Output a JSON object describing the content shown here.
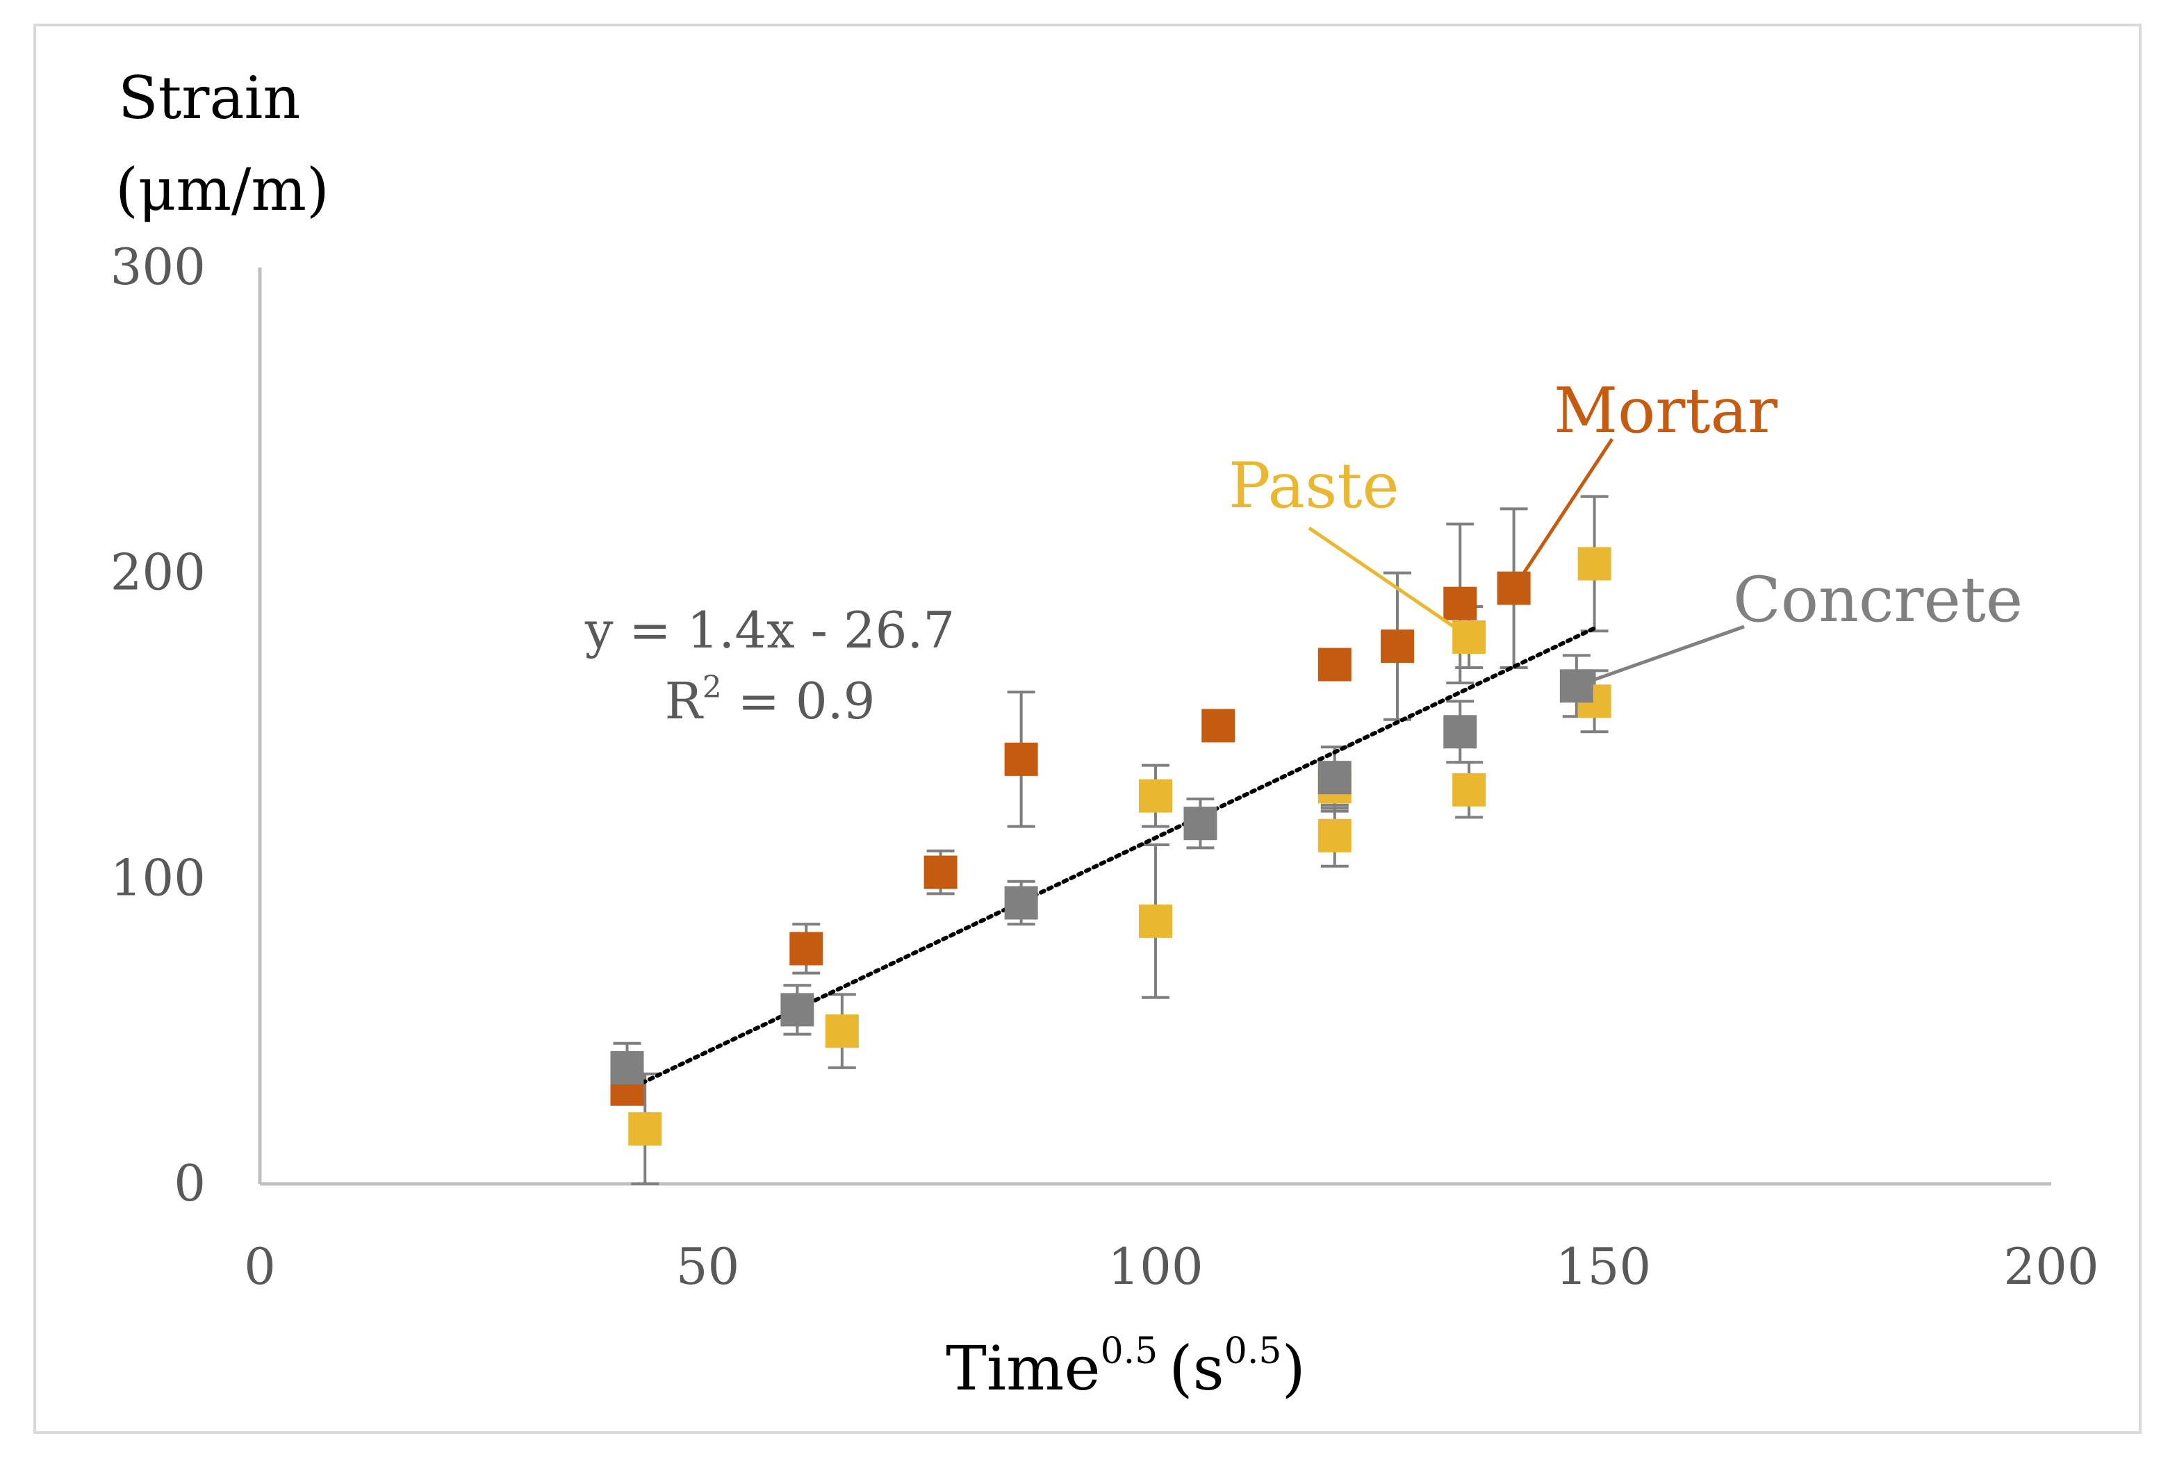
{
  "chart_data": {
    "type": "scatter",
    "title": "",
    "ylabel_line1": "Strain",
    "ylabel_line2": "(μm/m)",
    "xlabel_main": "Time",
    "xlabel_exp": "0.5",
    "xlabel_paren_open": "(s",
    "xlabel_paren_exp": "0.5",
    "xlabel_paren_close": ")",
    "xlim": [
      0,
      200
    ],
    "ylim": [
      0,
      300
    ],
    "xticks": [
      0,
      50,
      100,
      150,
      200
    ],
    "yticks": [
      0,
      100,
      200,
      300
    ],
    "grid": false,
    "axis_color": "#bfbfbf",
    "tick_label_color": "#595959",
    "series": [
      {
        "name": "Mortar",
        "color": "#c55a11",
        "points": [
          {
            "x": 41,
            "y": 31,
            "err": 0
          },
          {
            "x": 61,
            "y": 77,
            "err": 8
          },
          {
            "x": 76,
            "y": 102,
            "err": 7
          },
          {
            "x": 85,
            "y": 139,
            "err": 22
          },
          {
            "x": 107,
            "y": 150,
            "err": 0
          },
          {
            "x": 120,
            "y": 170,
            "err": 0
          },
          {
            "x": 127,
            "y": 176,
            "err": 24
          },
          {
            "x": 134,
            "y": 190,
            "err": 26
          },
          {
            "x": 140,
            "y": 195,
            "err": 26
          }
        ]
      },
      {
        "name": "Paste",
        "color": "#e9b830",
        "points": [
          {
            "x": 43,
            "y": 18,
            "err": 18
          },
          {
            "x": 65,
            "y": 50,
            "err": 12
          },
          {
            "x": 100,
            "y": 127,
            "err": 10
          },
          {
            "x": 100,
            "y": 86,
            "err": 25
          },
          {
            "x": 120,
            "y": 130,
            "err": 8
          },
          {
            "x": 120,
            "y": 114,
            "err": 10
          },
          {
            "x": 135,
            "y": 129,
            "err": 9
          },
          {
            "x": 135,
            "y": 179,
            "err": 10
          },
          {
            "x": 149,
            "y": 158,
            "err": 10
          },
          {
            "x": 149,
            "y": 203,
            "err": 22
          }
        ]
      },
      {
        "name": "Concrete",
        "color": "#808080",
        "points": [
          {
            "x": 41,
            "y": 38,
            "err": 8
          },
          {
            "x": 60,
            "y": 57,
            "err": 8
          },
          {
            "x": 85,
            "y": 92,
            "err": 7
          },
          {
            "x": 105,
            "y": 118,
            "err": 8
          },
          {
            "x": 120,
            "y": 133,
            "err": 10
          },
          {
            "x": 134,
            "y": 148,
            "err": 10
          },
          {
            "x": 147,
            "y": 163,
            "err": 10
          }
        ]
      }
    ],
    "trendline": {
      "x_start": 41,
      "x_end": 149,
      "slope": 1.4,
      "intercept": -26.7,
      "color": "#000000",
      "equation_label": "y = 1.4x - 26.7",
      "r2_label_prefix": "R",
      "r2_label_exp": "2",
      "r2_label_suffix": " = 0.9"
    },
    "annotations": [
      {
        "text": "Mortar",
        "color": "#c55a11",
        "points_to": {
          "x": 140,
          "y": 195
        }
      },
      {
        "text": "Paste",
        "color": "#e9b830",
        "points_to": {
          "x": 135,
          "y": 179
        }
      },
      {
        "text": "Concrete",
        "color": "#808080",
        "points_to": {
          "x": 147,
          "y": 163
        }
      }
    ]
  }
}
